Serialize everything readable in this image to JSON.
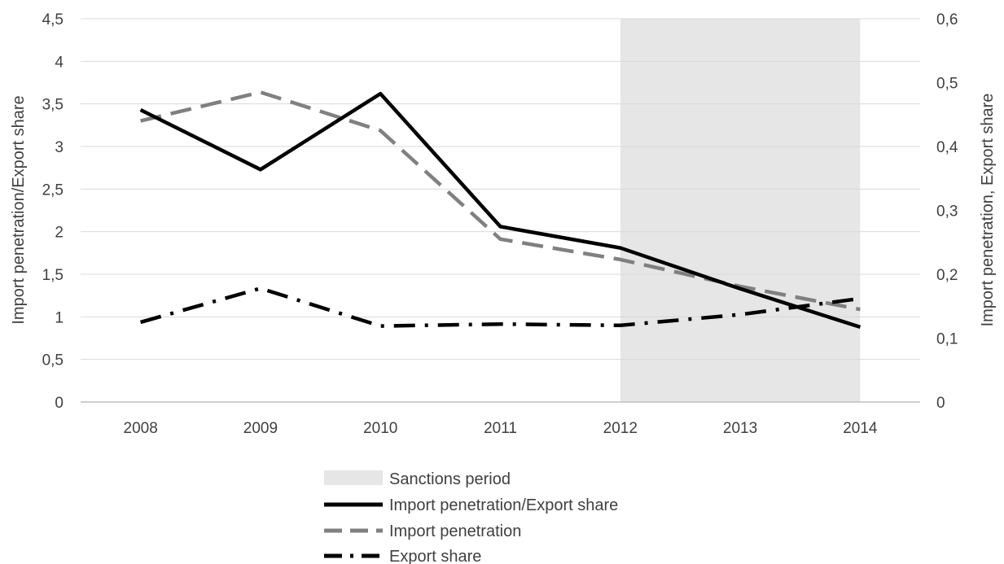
{
  "chart_data": {
    "type": "line",
    "categories": [
      "2008",
      "2009",
      "2010",
      "2011",
      "2012",
      "2013",
      "2014"
    ],
    "shaded_region": {
      "label": "Sanctions period",
      "from": "2012",
      "to": "2014",
      "color": "#e6e6e6"
    },
    "y_left": {
      "label": "Import penetration/Export share",
      "range": [
        0,
        4.5
      ],
      "ticks": [
        "0",
        "0,5",
        "1",
        "1,5",
        "2",
        "2,5",
        "3",
        "3,5",
        "4",
        "4,5"
      ]
    },
    "y_right": {
      "label": "Import penetration, Export share",
      "range": [
        0,
        0.6
      ],
      "ticks": [
        "0",
        "0,1",
        "0,2",
        "0,3",
        "0,4",
        "0,5",
        "0,6"
      ]
    },
    "series": [
      {
        "name": "Import penetration/Export share",
        "axis": "left",
        "style": "solid",
        "color": "#000000",
        "values": [
          3.43,
          2.73,
          3.62,
          2.06,
          1.81,
          1.33,
          0.88
        ]
      },
      {
        "name": "Import penetration",
        "axis": "right",
        "style": "dashed",
        "color": "#808080",
        "values": [
          0.44,
          0.485,
          0.425,
          0.255,
          0.223,
          0.181,
          0.145
        ]
      },
      {
        "name": "Export share",
        "axis": "right",
        "style": "dashdot",
        "color": "#000000",
        "values": [
          0.125,
          0.178,
          0.119,
          0.122,
          0.12,
          0.137,
          0.162
        ]
      }
    ],
    "grid": true,
    "legend_position": "bottom"
  }
}
